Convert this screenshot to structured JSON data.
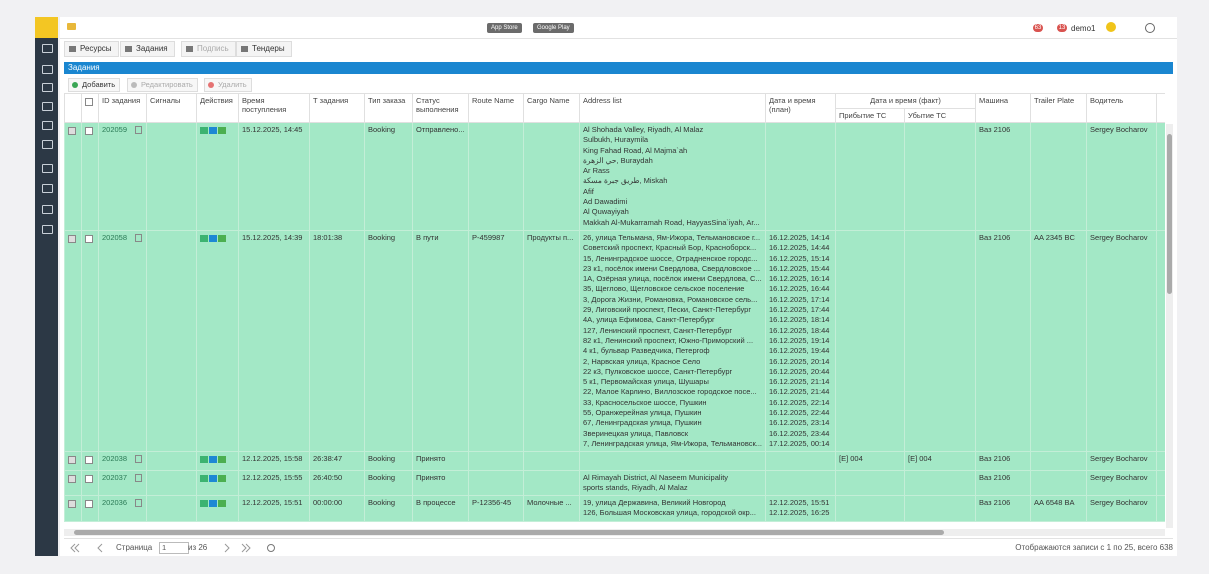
{
  "top_bar": {
    "store_badges": [
      "App Store",
      "Google Play"
    ],
    "notifications": [
      "63",
      "13"
    ],
    "user": "demo1"
  },
  "tabs": [
    "Ресурсы",
    "Задания",
    "Подпись",
    "Тендеры"
  ],
  "panel_title": "Задания",
  "toolbar": [
    "Добавить",
    "Редактировать",
    "Удалить"
  ],
  "columns": {
    "id": "ID задания",
    "signals": "Сигналы",
    "actions": "Действия",
    "received": "Время поступления",
    "task_time": "Т задания",
    "order_type": "Тип заказа",
    "status": "Статус выполнения",
    "route": "Route Name",
    "cargo": "Cargo Name",
    "addresses": "Address list",
    "plan": "Дата и время (план)",
    "fact": "Дата и время (факт)",
    "arrival": "Прибытие ТС",
    "departure": "Убытие ТС",
    "vehicle": "Машина",
    "trailer": "Trailer Plate",
    "driver": "Водитель"
  },
  "rows": [
    {
      "id": "202059",
      "received": "15.12.2025, 14:45",
      "order_type": "Booking",
      "status": "Отправлено...",
      "addresses": [
        "Al Shohada Valley, Riyadh, Al Malaz",
        "Sulbukh, Huraymila",
        "King Fahad Road, Al Majma`ah",
        "حي الزهرة, Buraydah",
        "Ar Rass",
        "طريق جبرة مسكة, Miskah",
        "Afif",
        "Ad Dawadimi",
        "Al Quwayiyah",
        "Makkah Al-Mukarramah Road, HayyasSina`iyah, Ar..."
      ],
      "vehicle": "Ваз 2106",
      "driver": "Sergey Bocharov"
    },
    {
      "id": "202058",
      "received": "15.12.2025, 14:39",
      "task_time": "18:01:38",
      "order_type": "Booking",
      "status": "В пути",
      "route": "P-459987",
      "cargo": "Продукты п...",
      "addresses": [
        "26, улица Тельмана, Ям-Ижора, Тельмановское г...",
        "Советский проспект, Красный Бор, Красноборск...",
        "15, Ленинградское шоссе, Отрадненское городс...",
        "23 к1, посёлок имени Свердлова, Свердловское ...",
        "1А, Озёрная улица, посёлок имени Свердлова, С...",
        "35, Щеглово, Щегловское сельское поселение",
        "3, Дорога Жизни, Романовка, Романовское сель...",
        "29, Лиговский проспект, Пески, Санкт-Петербург",
        "4А, улица Ефимова, Санкт-Петербург",
        "127, Ленинский проспект, Санкт-Петербург",
        "82 к1, Ленинский проспект, Южно-Приморский ...",
        "4 к1, бульвар Разведчика, Петергоф",
        "2, Нарвская улица, Красное Село",
        "22 к3, Пулковское шоссе, Санкт-Петербург",
        "5 к1, Первомайская улица, Шушары",
        "22, Малое Карлино, Виллозское городское посе...",
        "33, Красносельское шоссе, Пушкин",
        "55, Оранжерейная улица, Пушкин",
        "67, Ленинградская улица, Пушкин",
        "Зверинецкая улица, Павловск",
        "7, Ленинградская улица, Ям-Ижора, Тельмановск..."
      ],
      "plan": [
        "16.12.2025, 14:14",
        "16.12.2025, 14:44",
        "16.12.2025, 15:14",
        "16.12.2025, 15:44",
        "16.12.2025, 16:14",
        "16.12.2025, 16:44",
        "16.12.2025, 17:14",
        "16.12.2025, 17:44",
        "16.12.2025, 18:14",
        "16.12.2025, 18:44",
        "16.12.2025, 19:14",
        "16.12.2025, 19:44",
        "16.12.2025, 20:14",
        "16.12.2025, 20:44",
        "16.12.2025, 21:14",
        "16.12.2025, 21:44",
        "16.12.2025, 22:14",
        "16.12.2025, 22:44",
        "16.12.2025, 23:14",
        "16.12.2025, 23:44",
        "17.12.2025, 00:14"
      ],
      "vehicle": "Ваз 2106",
      "trailer": "AA 2345 BC",
      "driver": "Sergey Bocharov"
    },
    {
      "id": "202038",
      "received": "12.12.2025, 15:58",
      "task_time": "26:38:47",
      "order_type": "Booking",
      "status": "Принято",
      "arrival": "[E] 004",
      "departure": "[E] 004",
      "vehicle": "Ваз 2106",
      "driver": "Sergey Bocharov"
    },
    {
      "id": "202037",
      "received": "12.12.2025, 15:55",
      "task_time": "26:40:50",
      "order_type": "Booking",
      "status": "Принято",
      "addresses": [
        "Al Rimayah District, Al Naseem Municipality",
        "sports stands, Riyadh, Al Malaz"
      ],
      "vehicle": "Ваз 2106",
      "driver": "Sergey Bocharov"
    },
    {
      "id": "202036",
      "received": "12.12.2025, 15:51",
      "task_time": "00:00:00",
      "order_type": "Booking",
      "status": "В процессе",
      "route": "P-12356-45",
      "cargo": "Молочные ...",
      "addresses": [
        "19, улица Державина, Великий Новгород",
        "126, Большая Московская улица, городской окр..."
      ],
      "plan": [
        "12.12.2025, 15:51",
        "12.12.2025, 16:25"
      ],
      "vehicle": "Ваз 2106",
      "trailer": "AA 6548 BA",
      "driver": "Sergey Bocharov"
    }
  ],
  "pagination": {
    "page_label": "Страница",
    "page": "1",
    "of": "из 26",
    "summary": "Отображаются записи с 1 по 25, всего 638"
  }
}
